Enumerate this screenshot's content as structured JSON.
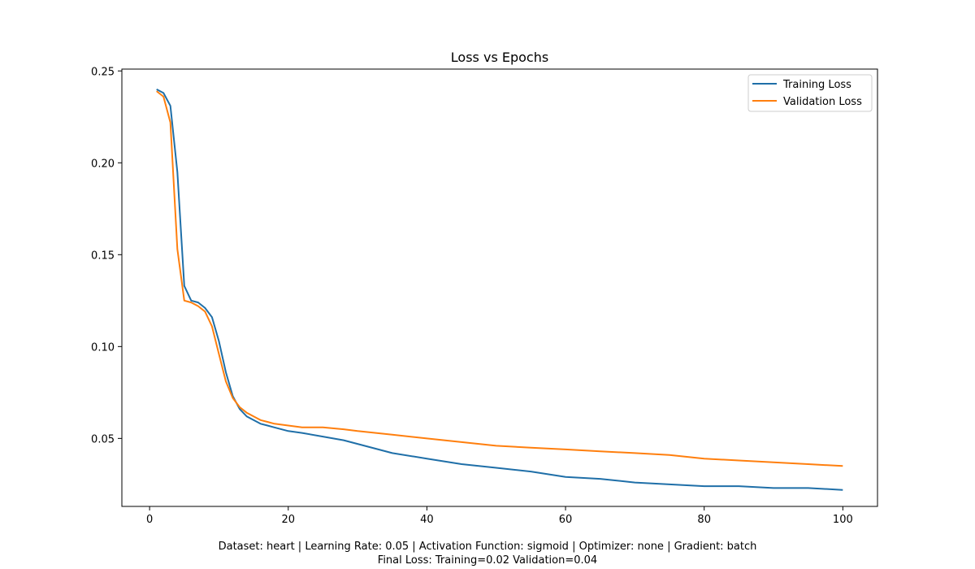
{
  "chart_data": {
    "type": "line",
    "title": "Loss vs Epochs",
    "xlabel": "",
    "ylabel": "",
    "xlim": [
      -4.0,
      105.0
    ],
    "ylim": [
      0.013,
      0.251
    ],
    "xticks": [
      0,
      20,
      40,
      60,
      80,
      100
    ],
    "yticks": [
      0.05,
      0.1,
      0.15,
      0.2,
      0.25
    ],
    "ytick_labels": [
      "0.05",
      "0.10",
      "0.15",
      "0.20",
      "0.25"
    ],
    "grid": false,
    "legend_position": "top-right",
    "series": [
      {
        "name": "Training Loss",
        "color": "#1f6fa8",
        "x": [
          1,
          2,
          3,
          4,
          5,
          6,
          7,
          8,
          9,
          10,
          11,
          12,
          13,
          14,
          15,
          16,
          17,
          18,
          20,
          22,
          25,
          28,
          30,
          35,
          40,
          45,
          50,
          55,
          60,
          65,
          70,
          75,
          80,
          85,
          90,
          95,
          100
        ],
        "values": [
          0.24,
          0.238,
          0.231,
          0.195,
          0.133,
          0.125,
          0.124,
          0.121,
          0.116,
          0.103,
          0.086,
          0.073,
          0.066,
          0.062,
          0.06,
          0.058,
          0.057,
          0.056,
          0.054,
          0.053,
          0.051,
          0.049,
          0.047,
          0.042,
          0.039,
          0.036,
          0.034,
          0.032,
          0.029,
          0.028,
          0.026,
          0.025,
          0.024,
          0.024,
          0.023,
          0.023,
          0.022
        ]
      },
      {
        "name": "Validation Loss",
        "color": "#ff7f0e",
        "x": [
          1,
          2,
          3,
          4,
          5,
          6,
          7,
          8,
          9,
          10,
          11,
          12,
          13,
          14,
          15,
          16,
          17,
          18,
          20,
          22,
          25,
          28,
          30,
          35,
          40,
          45,
          50,
          55,
          60,
          65,
          70,
          75,
          80,
          85,
          90,
          95,
          100
        ],
        "values": [
          0.239,
          0.236,
          0.222,
          0.153,
          0.125,
          0.124,
          0.122,
          0.119,
          0.111,
          0.096,
          0.081,
          0.072,
          0.067,
          0.064,
          0.062,
          0.06,
          0.059,
          0.058,
          0.057,
          0.056,
          0.056,
          0.055,
          0.054,
          0.052,
          0.05,
          0.048,
          0.046,
          0.045,
          0.044,
          0.043,
          0.042,
          0.041,
          0.039,
          0.038,
          0.037,
          0.036,
          0.035
        ]
      }
    ]
  },
  "footer": {
    "line1": "Dataset: heart | Learning Rate: 0.05 | Activation Function: sigmoid | Optimizer: none | Gradient: batch",
    "line2": "Final Loss: Training=0.02 Validation=0.04"
  }
}
